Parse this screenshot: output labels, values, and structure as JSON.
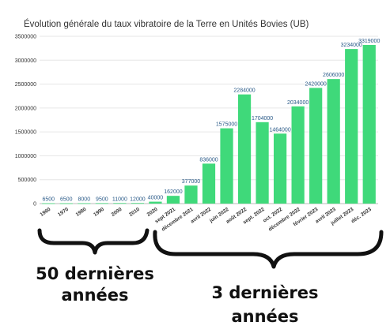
{
  "chart_data": {
    "type": "bar",
    "title": "Évolution générale du taux vibratoire de la Terre en Unités Bovies (UB)",
    "xlabel": "",
    "ylabel": "",
    "ylim": [
      0,
      3500000
    ],
    "yticks": [
      "0",
      "500000",
      "1000000",
      "1500000",
      "2000000",
      "2500000",
      "3000000",
      "3500000"
    ],
    "ytick_values": [
      0,
      500000,
      1000000,
      1500000,
      2000000,
      2500000,
      3000000,
      3500000
    ],
    "grid": true,
    "legend": "none",
    "bar_color": "#3fd97a",
    "categories": [
      "1960",
      "1970",
      "1980",
      "1990",
      "2000",
      "2010",
      "2020",
      "sept 2021",
      "décembre 2021",
      "avril 2022",
      "juin 2022",
      "août 2022",
      "sept. 2022",
      "oct. 2022",
      "décembre 2022",
      "février 2023",
      "avril 2023",
      "juillet 2023",
      "déc. 2023"
    ],
    "values": [
      6500,
      6500,
      8000,
      9500,
      11000,
      12000,
      40000,
      162000,
      377000,
      836000,
      1575000,
      2284000,
      1704000,
      1464000,
      2034000,
      2420000,
      2606000,
      3234000,
      3319000
    ],
    "data_labels": [
      "6500",
      "6500",
      "8000",
      "9500",
      "11000",
      "12000",
      "40000",
      "162000",
      "377000",
      "836000",
      "1575000",
      "2284000",
      "1704000",
      "1464000",
      "2034000",
      "2420000",
      "2606000",
      "3234000",
      "3319000"
    ]
  },
  "annotations": {
    "left": "50 dernières années",
    "right": "3 dernières années"
  }
}
